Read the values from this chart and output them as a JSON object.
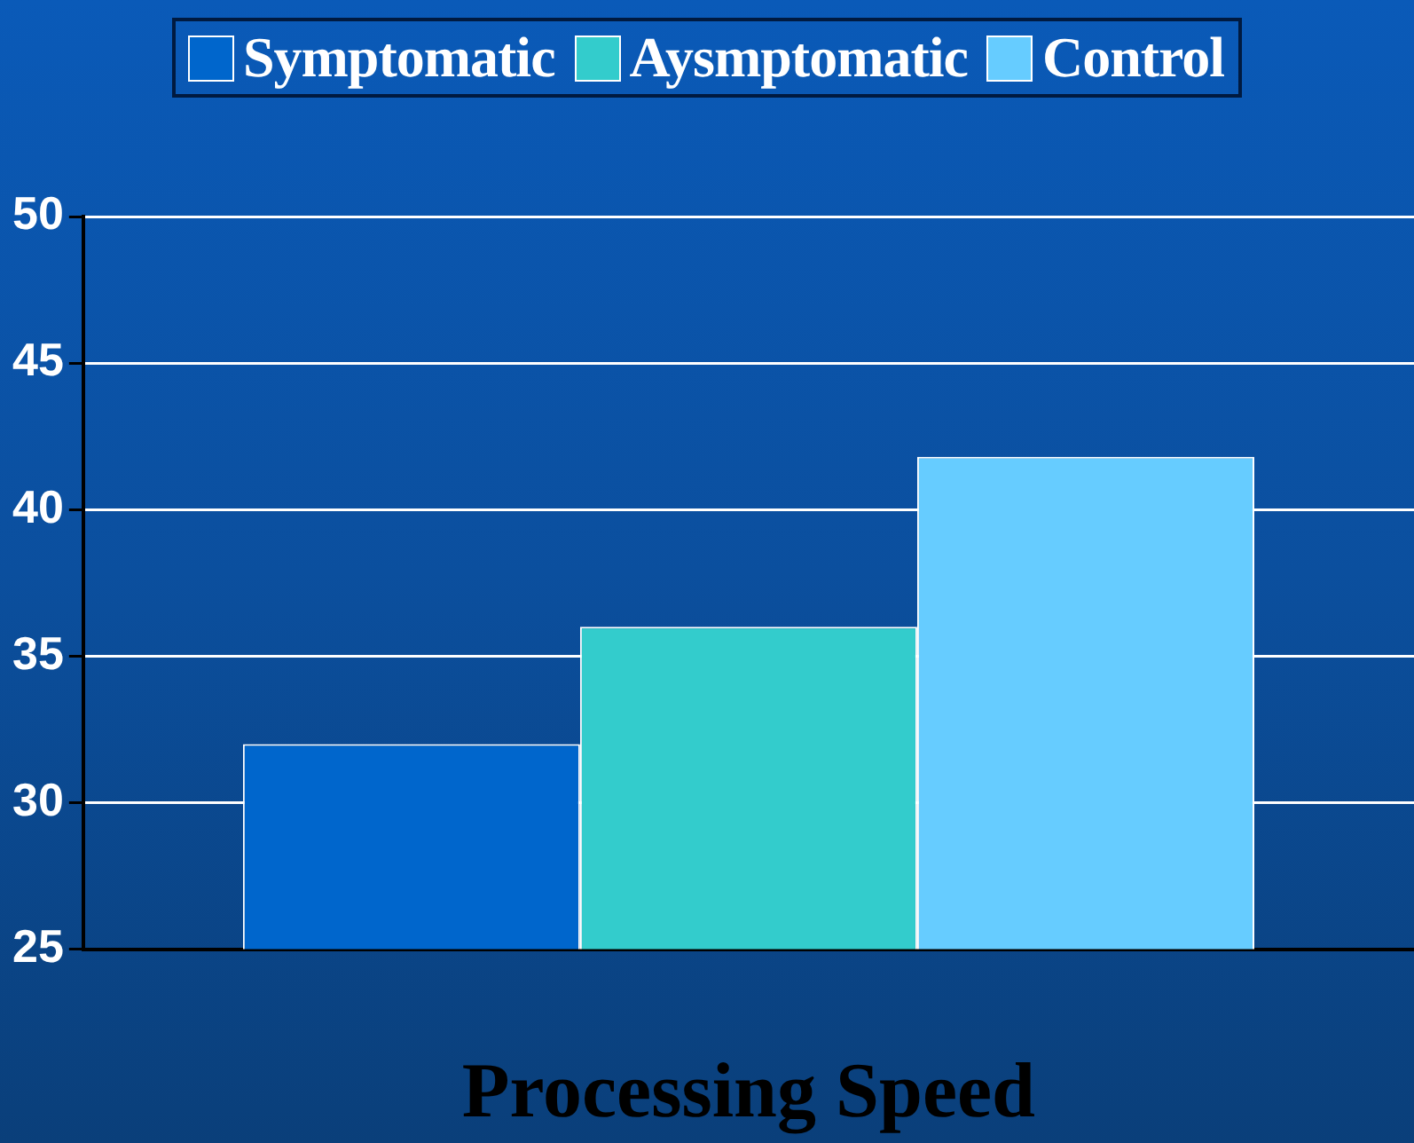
{
  "chart_data": {
    "type": "bar",
    "categories": [
      null
    ],
    "xlabel": "Processing Speed",
    "series": [
      {
        "name": "Symptomatic",
        "color": "#0066cc",
        "values": [
          32
        ]
      },
      {
        "name": "Aysmptomatic",
        "color": "#33cccc",
        "values": [
          36
        ]
      },
      {
        "name": "Control",
        "color": "#66ccff",
        "values": [
          41.8
        ]
      }
    ],
    "ylim": [
      25,
      50
    ],
    "yticks": [
      25,
      30,
      35,
      40,
      45,
      50
    ],
    "grid": "y",
    "legend": "top"
  }
}
